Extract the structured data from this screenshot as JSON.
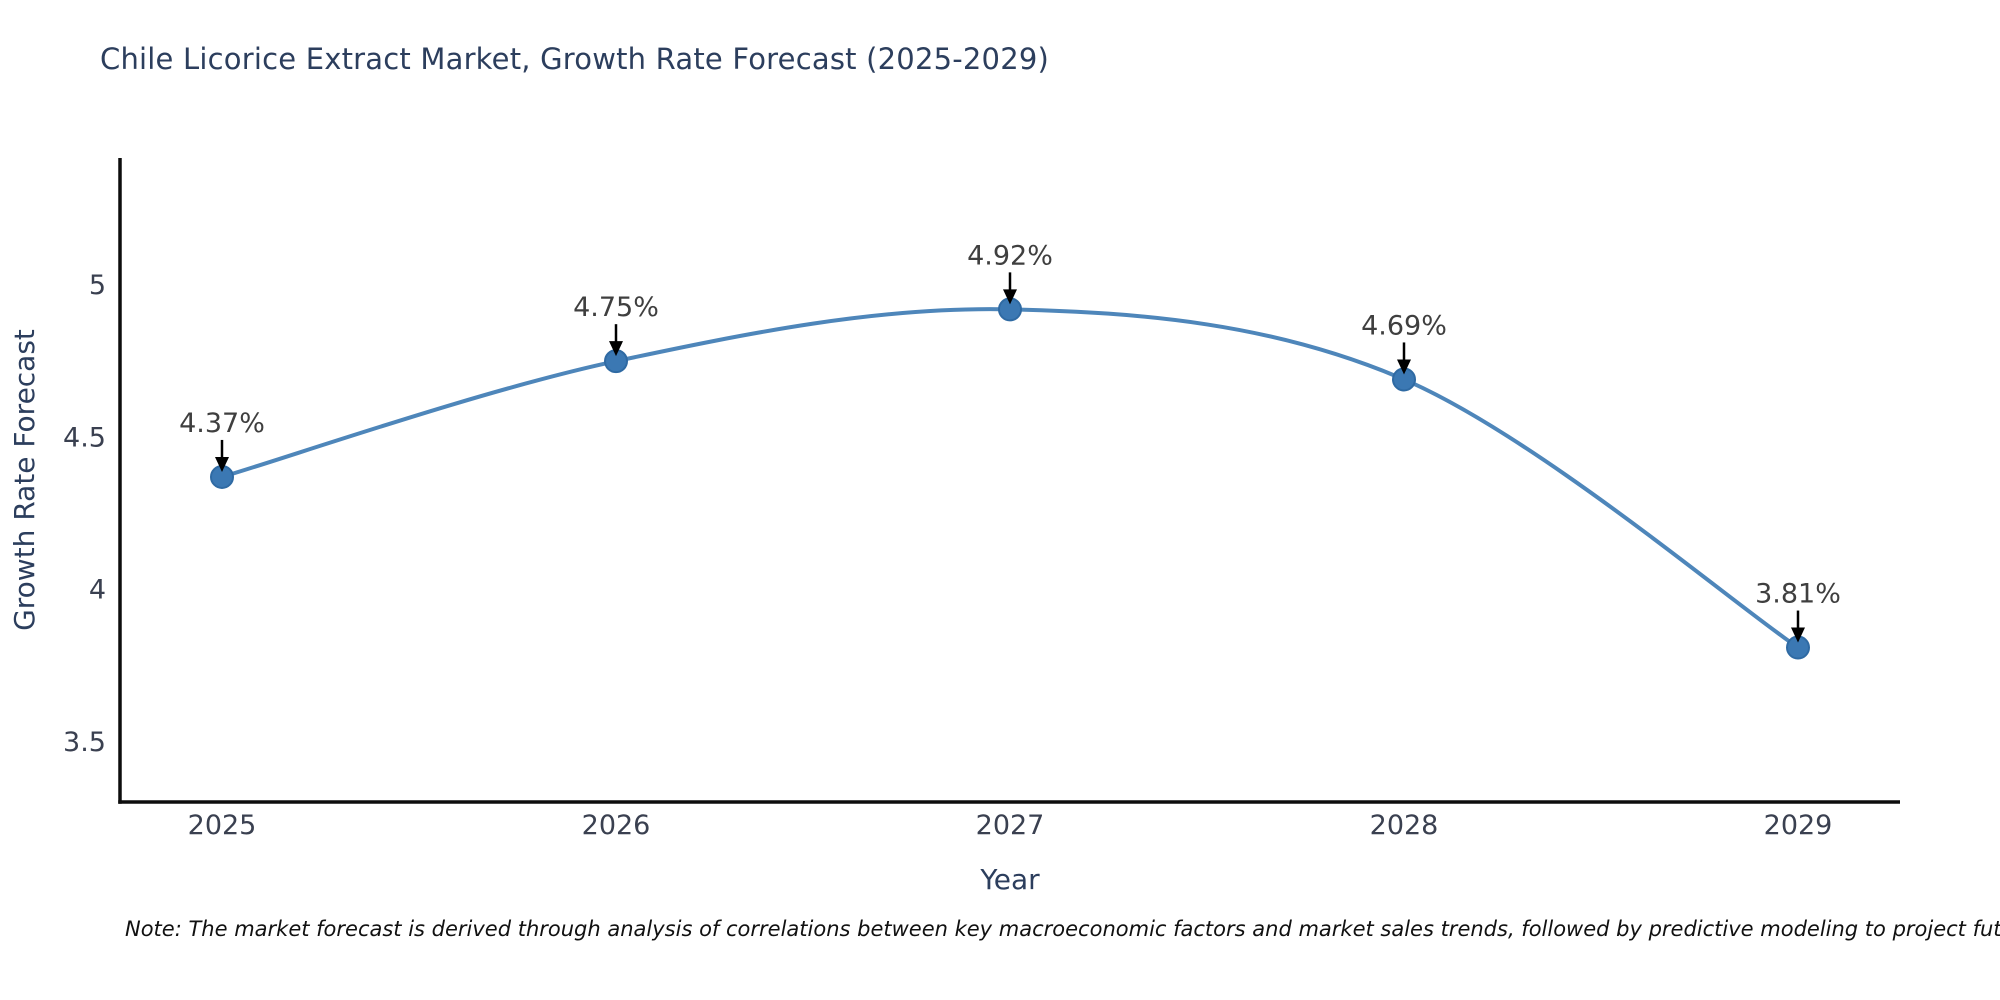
{
  "title": "Chile Licorice Extract Market, Growth Rate Forecast (2025-2029)",
  "note": "Note: The market forecast is derived through analysis of correlations between key macroeconomic factors and market sales trends, followed by predictive modeling to project future sales",
  "chart_data": {
    "type": "line",
    "title": "Chile Licorice Extract Market, Growth Rate Forecast (2025-2029)",
    "xlabel": "Year",
    "ylabel": "Growth Rate Forecast",
    "categories": [
      "2025",
      "2026",
      "2027",
      "2028",
      "2029"
    ],
    "values": [
      4.37,
      4.75,
      4.92,
      4.69,
      3.81
    ],
    "point_labels": [
      "4.37%",
      "4.75%",
      "4.92%",
      "4.69%",
      "3.81%"
    ],
    "ytick_values": [
      3.5,
      4,
      4.5,
      5
    ],
    "ytick_labels": [
      "3.5",
      "4",
      "4.5",
      "5"
    ],
    "ylim": [
      3.3,
      5.42
    ],
    "xlim": [
      2024.74,
      2029.26
    ],
    "grid": false,
    "legend_position": "none",
    "smoothing": "spline",
    "annotations_have_arrows": true
  },
  "style": {
    "line_color": "#4e86ba",
    "marker_fill": "#3b78b3",
    "marker_edge": "#2f6aa3",
    "arrow_color": "#000000",
    "annotation_text_color": "#3f3f3f",
    "tick_color": "#3a4050",
    "axis_label_color": "#2c3e5d",
    "title_color": "#2c3e5d",
    "spine_color": "#0d0d0d",
    "background": "#ffffff"
  }
}
